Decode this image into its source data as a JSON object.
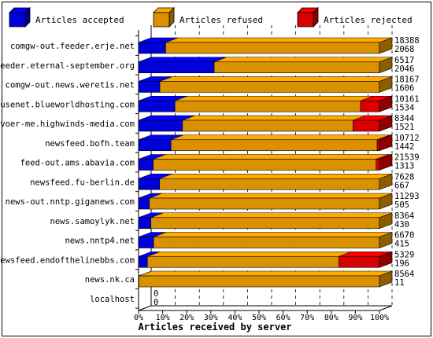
{
  "chart_data": {
    "type": "bar",
    "orientation": "horizontal",
    "stacked": "percent",
    "style": "3d",
    "xlabel": "Articles received by server",
    "xticks": [
      "0%",
      "10%",
      "20%",
      "30%",
      "40%",
      "50%",
      "60%",
      "70%",
      "80%",
      "90%",
      "100%"
    ],
    "xlim": [
      0,
      100
    ],
    "legend_position": "top",
    "legend": [
      {
        "name": "Articles accepted",
        "color": "#0000ff"
      },
      {
        "name": "Articles refused",
        "color": "#ffaa00"
      },
      {
        "name": "Articles rejected",
        "color": "#ff0000"
      }
    ],
    "categories": [
      "comgw-out.feeder.erje.net",
      "feeder.eternal-september.org",
      "comgw-out.news.weretis.net",
      "usenet.blueworldhosting.com",
      "voer-me.highwinds-media.com",
      "newsfeed.bofh.team",
      "feed-out.ams.abavia.com",
      "newsfeed.fu-berlin.de",
      "news-out.nntp.giganews.com",
      "news.samoylyk.net",
      "news.nntp4.net",
      "newsfeed.endofthelinebbs.com",
      "news.nk.ca",
      "localhost"
    ],
    "series": [
      {
        "name": "Articles accepted",
        "values": [
          2068,
          2046,
          1606,
          1534,
          1521,
          1442,
          1313,
          667,
          505,
          430,
          415,
          196,
          11,
          0
        ]
      },
      {
        "name": "Articles refused",
        "values": [
          16320,
          4471,
          16561,
          7828,
          5910,
          9168,
          19926,
          6961,
          10788,
          7934,
          6255,
          4234,
          8553,
          0
        ]
      },
      {
        "name": "Articles rejected",
        "values": [
          0,
          0,
          0,
          799,
          913,
          102,
          300,
          0,
          0,
          0,
          0,
          899,
          0,
          0
        ]
      }
    ],
    "totals": [
      18388,
      6517,
      18167,
      10161,
      8344,
      10712,
      21539,
      7628,
      11293,
      8364,
      6670,
      5329,
      8564,
      0
    ],
    "accepted_labels": [
      2068,
      2046,
      1606,
      1534,
      1521,
      1442,
      1313,
      667,
      505,
      430,
      415,
      196,
      11,
      0
    ]
  }
}
